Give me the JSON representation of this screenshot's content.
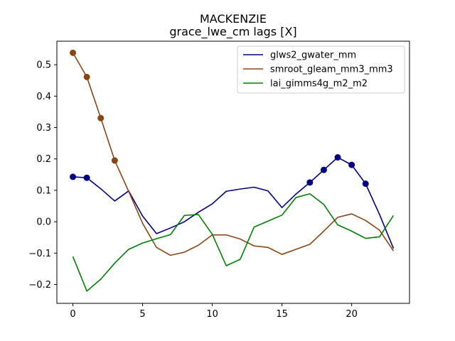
{
  "chart_data": {
    "type": "line",
    "title": "MACKENZIE",
    "subtitle": "grace_lwe_cm lags [X]",
    "xlabel": "",
    "ylabel": "",
    "xlim": [
      -1.15,
      24.15
    ],
    "ylim": [
      -0.26,
      0.575
    ],
    "xticks": [
      0,
      5,
      10,
      15,
      20
    ],
    "xtick_labels": [
      "0",
      "5",
      "10",
      "15",
      "20"
    ],
    "yticks": [
      -0.2,
      -0.1,
      0.0,
      0.1,
      0.2,
      0.3,
      0.4,
      0.5
    ],
    "ytick_labels": [
      "−0.2",
      "−0.1",
      "0.0",
      "0.1",
      "0.2",
      "0.3",
      "0.4",
      "0.5"
    ],
    "legend_position": "top-right",
    "x": [
      0,
      1,
      2,
      3,
      4,
      5,
      6,
      7,
      8,
      9,
      10,
      11,
      12,
      13,
      14,
      15,
      16,
      17,
      18,
      19,
      20,
      21,
      22,
      23
    ],
    "series": [
      {
        "name": "glws2_gwater_mm",
        "color": "#000080",
        "values": [
          0.143,
          0.14,
          0.105,
          0.066,
          0.098,
          0.018,
          -0.038,
          -0.02,
          0.0,
          0.03,
          0.057,
          0.097,
          0.104,
          0.11,
          0.098,
          0.045,
          0.088,
          0.125,
          0.165,
          0.205,
          0.181,
          0.121,
          0.023,
          -0.085
        ],
        "markers": [
          0,
          1,
          17,
          18,
          19,
          20,
          21
        ]
      },
      {
        "name": "smroot_gleam_mm3_mm3",
        "color": "#8b4513",
        "values": [
          0.538,
          0.461,
          0.33,
          0.195,
          0.097,
          -0.005,
          -0.082,
          -0.107,
          -0.097,
          -0.075,
          -0.042,
          -0.042,
          -0.055,
          -0.077,
          -0.082,
          -0.104,
          -0.088,
          -0.072,
          -0.03,
          0.014,
          0.025,
          0.004,
          -0.027,
          -0.093
        ],
        "markers": [
          0,
          1,
          2,
          3
        ]
      },
      {
        "name": "lai_gimms4g_m2_m2",
        "color": "#008000",
        "values": [
          -0.111,
          -0.221,
          -0.183,
          -0.132,
          -0.088,
          -0.068,
          -0.054,
          -0.041,
          0.02,
          0.023,
          -0.04,
          -0.14,
          -0.12,
          -0.017,
          0.002,
          0.021,
          0.077,
          0.089,
          0.055,
          -0.01,
          -0.03,
          -0.053,
          -0.048,
          0.02
        ],
        "markers": []
      }
    ]
  }
}
